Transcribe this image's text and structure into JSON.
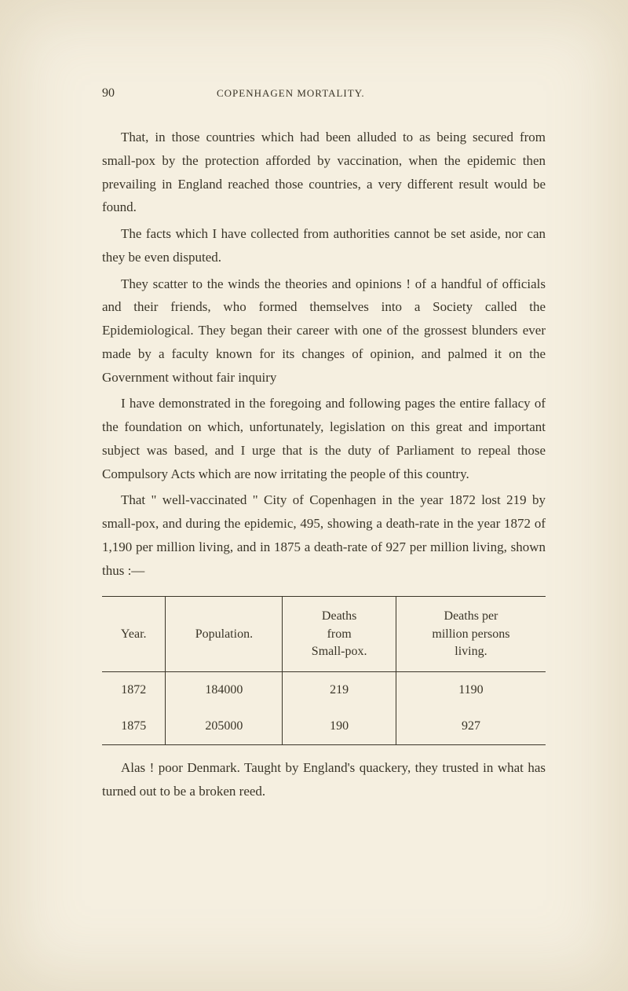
{
  "header": {
    "page_number": "90",
    "chapter_title": "COPENHAGEN MORTALITY."
  },
  "paragraphs": {
    "p1": "That, in those countries which had been alluded to as being secured from small-pox by the protection afforded by vaccination, when the epidemic then prevailing in England reached those countries, a very different result would be found.",
    "p2": "The facts which I have collected from authorities cannot be set aside, nor can they be even disputed.",
    "p3": "They scatter to the winds the theories and opinions ! of a handful of officials and their friends, who formed themselves into a Society called the Epidemiological. They began their career with one of the grossest blunders ever made by a faculty known for its changes of opinion, and palmed it on the Government without fair inquiry",
    "p4": "I have demonstrated in the foregoing and following pages the entire fallacy of the foundation on which, unfortunately, legislation on this great and important subject was based, and I urge that is the duty of Parliament to repeal those Compulsory Acts which are now irritating the people of this country.",
    "p5": "That \" well-vaccinated \" City of Copenhagen in the year 1872 lost 219 by small-pox, and during the epidemic, 495, showing a death-rate in the year 1872 of 1,190 per million living, and in 1875 a death-rate of 927 per million living, shown thus :—",
    "p6": "Alas ! poor Denmark. Taught by England's quackery, they trusted in what has turned out to be a broken reed."
  },
  "table": {
    "headers": {
      "col1": "Year.",
      "col2": "Population.",
      "col3_line1": "Deaths",
      "col3_line2": "from",
      "col3_line3": "Small-pox.",
      "col4_line1": "Deaths per",
      "col4_line2": "million persons",
      "col4_line3": "living."
    },
    "rows": [
      {
        "year": "1872",
        "population": "184000",
        "deaths": "219",
        "rate": "1190"
      },
      {
        "year": "1875",
        "population": "205000",
        "deaths": "190",
        "rate": "927"
      }
    ]
  }
}
